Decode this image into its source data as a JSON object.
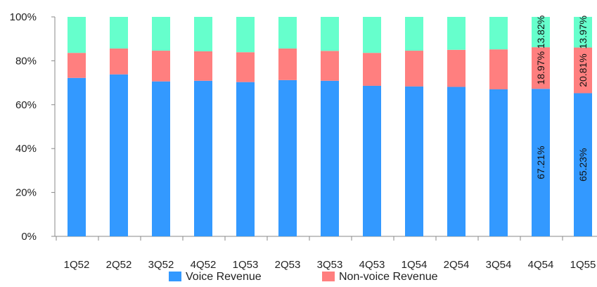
{
  "chart_data": {
    "type": "bar",
    "stacked": true,
    "percent_stacked": true,
    "categories": [
      "1Q52",
      "2Q52",
      "3Q52",
      "4Q52",
      "1Q53",
      "2Q53",
      "3Q53",
      "4Q53",
      "1Q54",
      "2Q54",
      "3Q54",
      "4Q54",
      "1Q55"
    ],
    "series": [
      {
        "name": "Voice Revenue",
        "color": "#3399ff",
        "values": [
          72.2,
          73.8,
          70.6,
          70.9,
          70.3,
          71.2,
          70.9,
          68.6,
          68.3,
          68.1,
          67.0,
          67.21,
          65.23
        ]
      },
      {
        "name": "Non-voice Revenue",
        "color": "#ff7f7f",
        "values": [
          11.4,
          11.8,
          14.0,
          13.4,
          13.6,
          14.4,
          13.6,
          15.0,
          16.3,
          16.9,
          18.2,
          18.97,
          20.81
        ]
      },
      {
        "color": "#66ffcc",
        "values": [
          16.4,
          14.4,
          15.4,
          15.7,
          16.1,
          14.4,
          15.5,
          16.4,
          15.4,
          15.0,
          14.8,
          13.82,
          13.97
        ]
      }
    ],
    "data_labels": [
      {
        "category": "4Q54",
        "series": 0,
        "text": "67.21%"
      },
      {
        "category": "4Q54",
        "series": 1,
        "text": "18.97%"
      },
      {
        "category": "4Q54",
        "series": 2,
        "text": "13.82%"
      },
      {
        "category": "1Q55",
        "series": 0,
        "text": "65.23%"
      },
      {
        "category": "1Q55",
        "series": 1,
        "text": "20.81%"
      },
      {
        "category": "1Q55",
        "series": 2,
        "text": "13.97%"
      }
    ],
    "ylim": [
      0,
      100
    ],
    "yticks": [
      "0%",
      "20%",
      "40%",
      "60%",
      "80%",
      "100%"
    ],
    "grid": false,
    "legend_position": "bottom"
  },
  "legend": {
    "voice_label": "Voice Revenue",
    "nonvoice_label": "Non-voice Revenue"
  }
}
